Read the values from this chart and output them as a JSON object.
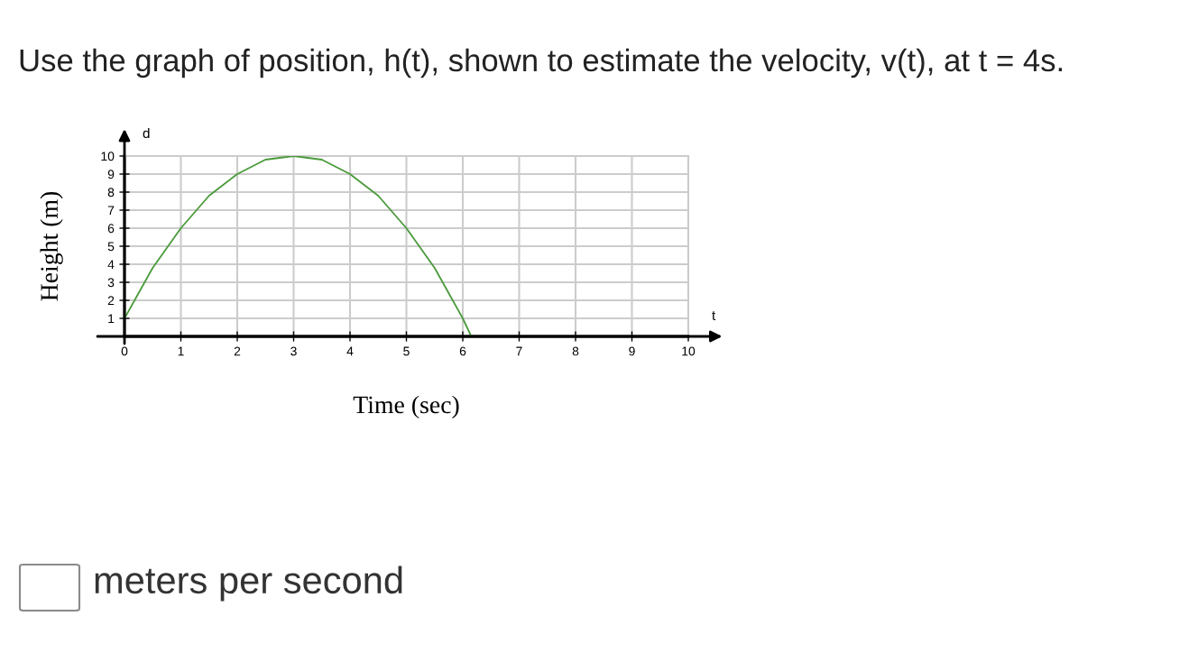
{
  "chart_data": {
    "type": "line",
    "title": "Use the graph of position, h(t), shown to estimate the velocity, v(t), at t = 4s.",
    "xlabel": "Time (sec)",
    "ylabel": "Height (m)",
    "annotations": [
      "d",
      "t",
      "meters per second"
    ],
    "x": [
      0,
      0.25,
      0.5,
      0.75,
      1,
      1.25,
      1.5,
      1.75,
      2,
      2.25,
      2.5,
      2.75,
      3,
      3.25,
      3.5,
      3.75,
      4,
      4.25,
      4.5,
      4.75,
      5,
      5.25,
      5.5,
      5.75,
      6,
      6.15
    ],
    "series": [
      {
        "color": "#4a9a3a",
        "values": [
          1,
          2.4,
          3.8,
          4.9,
          6,
          6.9,
          7.8,
          8.4,
          9,
          9.4,
          9.8,
          9.9,
          10,
          9.9,
          9.8,
          9.4,
          9,
          8.4,
          7.8,
          6.9,
          6,
          4.9,
          3.8,
          2.4,
          1,
          0
        ]
      }
    ],
    "xlim": [
      0,
      10
    ],
    "ylim": [
      0,
      10
    ],
    "xticks": [
      0,
      1,
      2,
      3,
      4,
      5,
      6,
      7,
      8,
      9,
      10
    ],
    "yticks": [
      1,
      2,
      3,
      4,
      5,
      6,
      7,
      8,
      9,
      10
    ],
    "grid": true
  }
}
